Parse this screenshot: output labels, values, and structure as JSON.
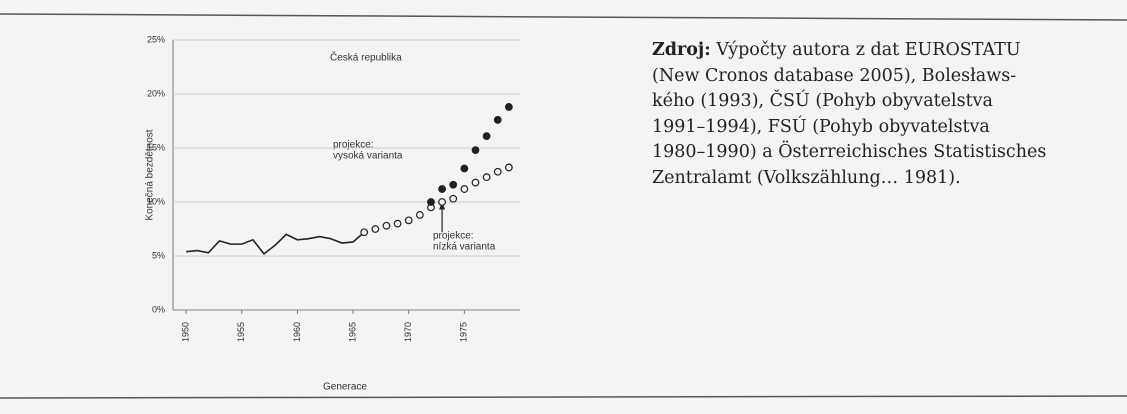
{
  "chart_data": {
    "type": "line",
    "ylabel": "Konečná bezdětnost",
    "xlabel": "Generace",
    "annotations": [
      "Česká republika",
      "projekce:",
      "vysoká varianta",
      "projekce:",
      "nízká varianta"
    ],
    "xlim": [
      1949,
      1980
    ],
    "xticks": [
      1950,
      1955,
      1960,
      1965,
      1970,
      1975
    ],
    "ylim": [
      0,
      25
    ],
    "yticks": [
      {
        "value": 0,
        "label": "0%"
      },
      {
        "value": 5,
        "label": "5%"
      },
      {
        "value": 10,
        "label": "10%"
      },
      {
        "value": 15,
        "label": "15%"
      },
      {
        "value": 20,
        "label": "20%"
      },
      {
        "value": 25,
        "label": "25%"
      }
    ],
    "grid": true,
    "series": [
      {
        "style": "line",
        "color": "#222222",
        "x": [
          1950,
          1951,
          1952,
          1953,
          1954,
          1955,
          1956,
          1957,
          1958,
          1959,
          1960,
          1961,
          1962,
          1963,
          1964,
          1965,
          1966
        ],
        "values": [
          5.4,
          5.5,
          5.3,
          6.4,
          6.1,
          6.1,
          6.5,
          5.2,
          6.0,
          7.0,
          6.5,
          6.6,
          6.8,
          6.6,
          6.2,
          6.3,
          7.2
        ]
      },
      {
        "style": "open",
        "color": "#222222",
        "x": [
          1966,
          1967,
          1968,
          1969,
          1970,
          1971,
          1972,
          1973,
          1974,
          1975,
          1976,
          1977,
          1978,
          1979
        ],
        "values": [
          7.2,
          7.5,
          7.8,
          8.0,
          8.3,
          8.8,
          9.5,
          10.0,
          10.3,
          11.2,
          11.8,
          12.3,
          12.8,
          13.2
        ]
      },
      {
        "style": "filled",
        "color": "#222222",
        "x": [
          1972,
          1973,
          1974,
          1975,
          1976,
          1977,
          1978,
          1979
        ],
        "values": [
          10.0,
          11.2,
          11.6,
          13.1,
          14.8,
          16.1,
          17.6,
          18.8
        ]
      }
    ]
  },
  "source": {
    "label": "Zdroj:",
    "lines": [
      " Výpočty autora z dat EUROSTATU",
      "(New Cronos database 2005), Bolesławs-",
      "kého (1993), ČSÚ (Pohyb obyvatelstva",
      "1991–1994), FSÚ (Pohyb obyvatelstva",
      "1980–1990) a Österreichisches Statistisches",
      "Zentralamt (Volkszählung… 1981)."
    ]
  }
}
